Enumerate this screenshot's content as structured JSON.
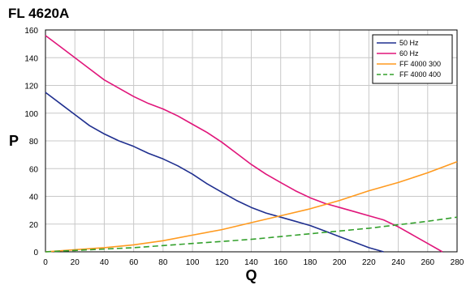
{
  "chart_data": {
    "type": "line",
    "title": "FL 4620A",
    "xlabel": "Q",
    "ylabel": "P",
    "xlim": [
      0,
      280
    ],
    "ylim": [
      0,
      160
    ],
    "xticks": [
      0,
      20,
      40,
      60,
      80,
      100,
      120,
      140,
      160,
      180,
      200,
      220,
      240,
      260,
      280
    ],
    "yticks": [
      0,
      20,
      40,
      60,
      80,
      100,
      120,
      140,
      160
    ],
    "grid": true,
    "legend_position": "top-right",
    "series": [
      {
        "name": "50 Hz",
        "color": "#1f2f8f",
        "dash": "solid",
        "x": [
          0,
          10,
          20,
          30,
          40,
          50,
          60,
          70,
          80,
          90,
          100,
          110,
          120,
          130,
          140,
          150,
          160,
          170,
          180,
          190,
          200,
          210,
          220,
          230
        ],
        "y": [
          115,
          107,
          99,
          91,
          85,
          80,
          76,
          71,
          67,
          62,
          56,
          49,
          43,
          37,
          32,
          28,
          25,
          22,
          19,
          15,
          11,
          7,
          3,
          0
        ]
      },
      {
        "name": "60 Hz",
        "color": "#e0157a",
        "dash": "solid",
        "x": [
          0,
          10,
          20,
          30,
          40,
          50,
          60,
          70,
          80,
          90,
          100,
          110,
          120,
          130,
          140,
          150,
          160,
          170,
          180,
          190,
          200,
          210,
          220,
          230,
          240,
          250,
          260,
          270
        ],
        "y": [
          156,
          148,
          140,
          132,
          124,
          118,
          112,
          107,
          103,
          98,
          92,
          86,
          79,
          71,
          63,
          56,
          50,
          44,
          39,
          35,
          32,
          29,
          26,
          23,
          18,
          12,
          6,
          0
        ]
      },
      {
        "name": "FF 4000 300",
        "color": "#ff9a1f",
        "dash": "solid",
        "x": [
          0,
          20,
          40,
          60,
          80,
          100,
          120,
          140,
          160,
          180,
          200,
          220,
          240,
          260,
          280
        ],
        "y": [
          0,
          1.5,
          3,
          5,
          8,
          12,
          16,
          21,
          26,
          31,
          37,
          44,
          50,
          57,
          65
        ]
      },
      {
        "name": "FF 4000 400",
        "color": "#33a02c",
        "dash": "dashed",
        "x": [
          0,
          20,
          40,
          60,
          80,
          100,
          120,
          140,
          160,
          180,
          200,
          220,
          240,
          260,
          280
        ],
        "y": [
          0,
          1,
          2,
          3,
          4.5,
          6,
          7.5,
          9,
          11,
          13,
          15,
          17,
          19.5,
          22,
          25
        ]
      }
    ]
  }
}
